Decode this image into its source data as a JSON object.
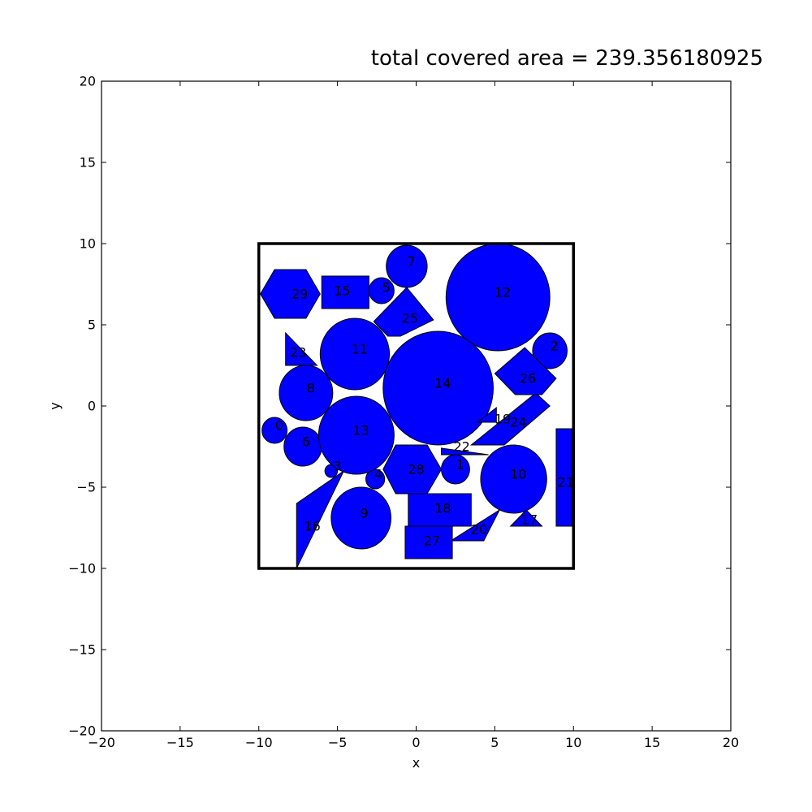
{
  "chart_data": {
    "type": "shape-packing",
    "title": "total covered area =  239.356180925",
    "xlabel": "x",
    "ylabel": "y",
    "xlim": [
      -20,
      20
    ],
    "ylim": [
      -20,
      20
    ],
    "xticks": [
      -20,
      -15,
      -10,
      -5,
      0,
      5,
      10,
      15,
      20
    ],
    "yticks": [
      -20,
      -15,
      -10,
      -5,
      0,
      5,
      10,
      15,
      20
    ],
    "grid": false,
    "fill_color": "#0000ff",
    "edge_color": "#000000",
    "container": [
      [
        -10,
        -10
      ],
      [
        10,
        -10
      ],
      [
        10,
        10
      ],
      [
        -10,
        10
      ]
    ],
    "shapes": [
      {
        "id": "0",
        "kind": "circle",
        "cx": -9.0,
        "cy": -1.5,
        "r": 0.8,
        "label": [
          -8.7,
          -1.2
        ]
      },
      {
        "id": "1",
        "kind": "circle",
        "cx": 2.5,
        "cy": -3.9,
        "r": 0.9,
        "label": [
          2.8,
          -3.6
        ]
      },
      {
        "id": "2",
        "kind": "circle",
        "cx": 8.5,
        "cy": 3.4,
        "r": 1.1,
        "label": [
          8.8,
          3.7
        ]
      },
      {
        "id": "3",
        "kind": "circle",
        "cx": -5.4,
        "cy": -4.0,
        "r": 0.4,
        "label": [
          -5.0,
          -3.7
        ]
      },
      {
        "id": "4",
        "kind": "circle",
        "cx": -2.6,
        "cy": -4.5,
        "r": 0.6,
        "label": [
          -2.4,
          -4.2
        ]
      },
      {
        "id": "5",
        "kind": "circle",
        "cx": -2.2,
        "cy": 7.1,
        "r": 0.8,
        "label": [
          -1.9,
          7.3
        ]
      },
      {
        "id": "6",
        "kind": "circle",
        "cx": -7.2,
        "cy": -2.5,
        "r": 1.2,
        "label": [
          -7.0,
          -2.2
        ]
      },
      {
        "id": "7",
        "kind": "circle",
        "cx": -0.6,
        "cy": 8.6,
        "r": 1.3,
        "label": [
          -0.3,
          8.9
        ]
      },
      {
        "id": "8",
        "kind": "circle",
        "cx": -7.0,
        "cy": 0.8,
        "r": 1.7,
        "label": [
          -6.7,
          1.1
        ]
      },
      {
        "id": "9",
        "kind": "circle",
        "cx": -3.5,
        "cy": -6.9,
        "r": 1.9,
        "label": [
          -3.3,
          -6.6
        ]
      },
      {
        "id": "10",
        "kind": "circle",
        "cx": 6.2,
        "cy": -4.5,
        "r": 2.1,
        "label": [
          6.5,
          -4.2
        ]
      },
      {
        "id": "11",
        "kind": "circle",
        "cx": -3.9,
        "cy": 3.2,
        "r": 2.2,
        "label": [
          -3.6,
          3.5
        ]
      },
      {
        "id": "12",
        "kind": "circle",
        "cx": 5.2,
        "cy": 6.7,
        "r": 3.3,
        "label": [
          5.5,
          7.0
        ]
      },
      {
        "id": "13",
        "kind": "circle",
        "cx": -3.8,
        "cy": -1.8,
        "r": 2.4,
        "label": [
          -3.5,
          -1.5
        ]
      },
      {
        "id": "14",
        "kind": "circle",
        "cx": 1.4,
        "cy": 1.1,
        "r": 3.5,
        "label": [
          1.7,
          1.4
        ]
      },
      {
        "id": "15",
        "kind": "polygon",
        "points": [
          [
            -6.0,
            8.0
          ],
          [
            -3.0,
            8.0
          ],
          [
            -3.0,
            6.0
          ],
          [
            -6.0,
            6.0
          ]
        ],
        "label": [
          -4.7,
          7.1
        ]
      },
      {
        "id": "16",
        "kind": "polygon",
        "points": [
          [
            -7.6,
            -10.0
          ],
          [
            -7.6,
            -6.0
          ],
          [
            -4.6,
            -4.0
          ]
        ],
        "label": [
          -6.6,
          -7.4
        ]
      },
      {
        "id": "17",
        "kind": "polygon",
        "points": [
          [
            6.0,
            -7.4
          ],
          [
            8.0,
            -7.4
          ],
          [
            7.0,
            -6.4
          ]
        ],
        "label": [
          7.2,
          -7.0
        ]
      },
      {
        "id": "18",
        "kind": "polygon",
        "points": [
          [
            -0.5,
            -5.4
          ],
          [
            3.5,
            -5.4
          ],
          [
            3.5,
            -7.4
          ],
          [
            -0.5,
            -7.4
          ]
        ],
        "label": [
          1.7,
          -6.3
        ]
      },
      {
        "id": "19",
        "kind": "polygon",
        "points": [
          [
            5.1,
            -0.1
          ],
          [
            5.1,
            -1.0
          ],
          [
            3.9,
            -1.0
          ]
        ],
        "label": [
          5.5,
          -0.8
        ]
      },
      {
        "id": "20",
        "kind": "polygon",
        "points": [
          [
            2.2,
            -8.3
          ],
          [
            4.3,
            -8.3
          ],
          [
            5.3,
            -6.4
          ]
        ],
        "label": [
          4.0,
          -7.6
        ]
      },
      {
        "id": "21",
        "kind": "polygon",
        "points": [
          [
            8.9,
            -1.4
          ],
          [
            9.9,
            -1.4
          ],
          [
            9.9,
            -7.4
          ],
          [
            8.9,
            -7.4
          ]
        ],
        "label": [
          9.5,
          -4.7
        ]
      },
      {
        "id": "22",
        "kind": "polygon",
        "points": [
          [
            1.6,
            -2.6
          ],
          [
            1.6,
            -3.0
          ],
          [
            4.6,
            -3.0
          ]
        ],
        "label": [
          2.9,
          -2.5
        ]
      },
      {
        "id": "23",
        "kind": "polygon",
        "points": [
          [
            -8.3,
            4.5
          ],
          [
            -8.3,
            2.5
          ],
          [
            -6.3,
            2.5
          ]
        ],
        "label": [
          -7.5,
          3.3
        ]
      },
      {
        "id": "24",
        "kind": "polygon",
        "points": [
          [
            3.5,
            -2.4
          ],
          [
            5.6,
            -2.4
          ],
          [
            8.5,
            0.0
          ],
          [
            7.6,
            0.8
          ]
        ],
        "label": [
          6.5,
          -1.0
        ]
      },
      {
        "id": "25",
        "kind": "polygon",
        "points": [
          [
            -1.0,
            4.3
          ],
          [
            1.1,
            5.3
          ],
          [
            -0.6,
            7.3
          ],
          [
            -2.7,
            5.2
          ],
          [
            -1.8,
            4.3
          ]
        ],
        "label": [
          -0.4,
          5.4
        ]
      },
      {
        "id": "26",
        "kind": "polygon",
        "points": [
          [
            5.0,
            2.0
          ],
          [
            6.9,
            3.6
          ],
          [
            8.9,
            1.7
          ],
          [
            8.0,
            0.7
          ],
          [
            6.3,
            0.7
          ]
        ],
        "label": [
          7.1,
          1.7
        ]
      },
      {
        "id": "27",
        "kind": "polygon",
        "points": [
          [
            -0.7,
            -7.4
          ],
          [
            2.3,
            -7.4
          ],
          [
            2.3,
            -9.4
          ],
          [
            -0.7,
            -9.4
          ]
        ],
        "label": [
          1.0,
          -8.3
        ]
      },
      {
        "id": "28",
        "kind": "polygon",
        "points": [
          [
            -1.3,
            -2.4
          ],
          [
            0.7,
            -2.4
          ],
          [
            1.6,
            -3.9
          ],
          [
            0.7,
            -5.4
          ],
          [
            -1.3,
            -5.4
          ],
          [
            -2.1,
            -3.9
          ]
        ],
        "label": [
          0.0,
          -3.9
        ]
      },
      {
        "id": "29",
        "kind": "polygon",
        "points": [
          [
            -9.9,
            6.9
          ],
          [
            -9.0,
            8.4
          ],
          [
            -7.0,
            8.4
          ],
          [
            -6.1,
            6.9
          ],
          [
            -7.0,
            5.4
          ],
          [
            -9.0,
            5.4
          ]
        ],
        "label": [
          -7.4,
          6.9
        ]
      }
    ]
  }
}
